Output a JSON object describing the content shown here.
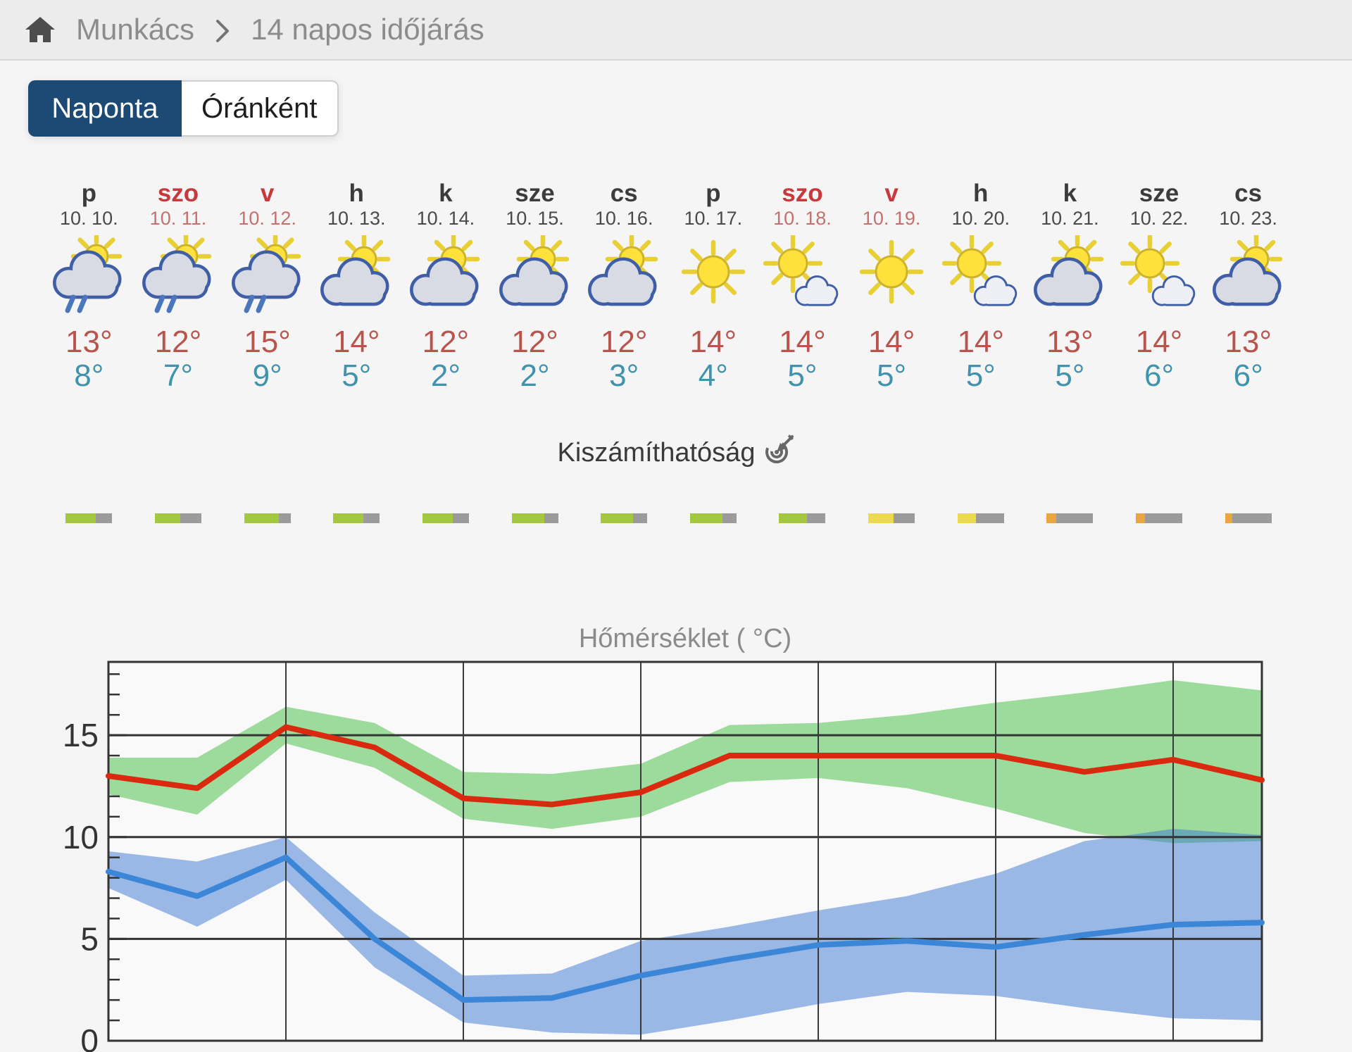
{
  "breadcrumb": {
    "location": "Munkács",
    "page": "14 napos időjárás"
  },
  "tabs": {
    "daily": "Naponta",
    "hourly": "Óránként"
  },
  "predictability": {
    "title": "Kiszámíthatóság"
  },
  "colors": {
    "tab_active": "#1c4a74",
    "high_temp": "#b9544c",
    "low_temp": "#4193ad",
    "weekend": "#c8393c",
    "bar": {
      "green": "#a3c73f",
      "yellow": "#ecd94d",
      "orange": "#e9a53f",
      "track": "#9b9b9b"
    }
  },
  "days": [
    {
      "name": "p",
      "date": "10. 10.",
      "weekend": false,
      "icon": "sun-behind-rain-cloud",
      "high": "13°",
      "low": "8°",
      "predictability_pct": "65%",
      "predict_value": 65,
      "bar_color": "green"
    },
    {
      "name": "szo",
      "date": "10. 11.",
      "weekend": true,
      "icon": "sun-behind-rain-cloud",
      "high": "12°",
      "low": "7°",
      "predictability_pct": "55%",
      "predict_value": 55,
      "bar_color": "green"
    },
    {
      "name": "v",
      "date": "10. 12.",
      "weekend": true,
      "icon": "sun-behind-rain-cloud",
      "high": "15°",
      "low": "9°",
      "predictability_pct": "75%",
      "predict_value": 75,
      "bar_color": "green"
    },
    {
      "name": "h",
      "date": "10. 13.",
      "weekend": false,
      "icon": "sun-behind-cloud",
      "high": "14°",
      "low": "5°",
      "predictability_pct": "65%",
      "predict_value": 65,
      "bar_color": "green"
    },
    {
      "name": "k",
      "date": "10. 14.",
      "weekend": false,
      "icon": "sun-behind-cloud",
      "high": "12°",
      "low": "2°",
      "predictability_pct": "65%",
      "predict_value": 65,
      "bar_color": "green"
    },
    {
      "name": "sze",
      "date": "10. 15.",
      "weekend": false,
      "icon": "sun-behind-cloud",
      "high": "12°",
      "low": "2°",
      "predictability_pct": "70%",
      "predict_value": 70,
      "bar_color": "green"
    },
    {
      "name": "cs",
      "date": "10. 16.",
      "weekend": false,
      "icon": "sun-behind-cloud",
      "high": "12°",
      "low": "3°",
      "predictability_pct": "70%",
      "predict_value": 70,
      "bar_color": "green"
    },
    {
      "name": "p",
      "date": "10. 17.",
      "weekend": false,
      "icon": "sunny",
      "high": "14°",
      "low": "4°",
      "predictability_pct": "70%",
      "predict_value": 70,
      "bar_color": "green"
    },
    {
      "name": "szo",
      "date": "10. 18.",
      "weekend": true,
      "icon": "sun-with-small-cloud",
      "high": "14°",
      "low": "5°",
      "predictability_pct": "60%",
      "predict_value": 60,
      "bar_color": "green"
    },
    {
      "name": "v",
      "date": "10. 19.",
      "weekend": true,
      "icon": "sunny",
      "high": "14°",
      "low": "5°",
      "predictability_pct": "55%",
      "predict_value": 55,
      "bar_color": "yellow"
    },
    {
      "name": "h",
      "date": "10. 20.",
      "weekend": false,
      "icon": "sun-with-small-cloud",
      "high": "14°",
      "low": "5°",
      "predictability_pct": "40%",
      "predict_value": 40,
      "bar_color": "yellow"
    },
    {
      "name": "k",
      "date": "10. 21.",
      "weekend": false,
      "icon": "sun-behind-cloud",
      "high": "13°",
      "low": "5°",
      "predictability_pct": "20%",
      "predict_value": 20,
      "bar_color": "orange"
    },
    {
      "name": "sze",
      "date": "10. 22.",
      "weekend": false,
      "icon": "sun-with-small-cloud",
      "high": "14°",
      "low": "6°",
      "predictability_pct": "20%",
      "predict_value": 20,
      "bar_color": "orange"
    },
    {
      "name": "cs",
      "date": "10. 23.",
      "weekend": false,
      "icon": "sun-behind-cloud",
      "high": "13°",
      "low": "6°",
      "predictability_pct": "15%",
      "predict_value": 15,
      "bar_color": "orange"
    }
  ],
  "chart_data": {
    "type": "line",
    "title": "Hőmérséklet ( °C)",
    "categories": [
      "10. 10.",
      "10. 11.",
      "10. 12.",
      "10. 13.",
      "10. 14.",
      "10. 15.",
      "10. 16.",
      "10. 17.",
      "10. 18.",
      "10. 19.",
      "10. 20.",
      "10. 21.",
      "10. 22.",
      "10. 23."
    ],
    "xlabel": "",
    "ylabel": "",
    "ylim": [
      0,
      18.6
    ],
    "yticks": [
      0,
      5,
      10,
      15
    ],
    "x_gridlines_at_day": [
      3,
      5,
      7,
      9,
      11,
      13
    ],
    "grid": true,
    "legend": false,
    "series": [
      {
        "name": "daily-high",
        "color": "#d92a10",
        "values": [
          13.0,
          12.4,
          15.4,
          14.4,
          11.9,
          11.6,
          12.2,
          14.0,
          14.0,
          14.0,
          14.0,
          13.2,
          13.8,
          12.8
        ],
        "band": {
          "color": "rgb(98,200,98)",
          "opacity": 0.62,
          "upper": [
            13.9,
            13.9,
            16.4,
            15.6,
            13.2,
            13.1,
            13.6,
            15.5,
            15.6,
            16.0,
            16.6,
            17.1,
            17.7,
            17.2
          ],
          "lower": [
            12.1,
            11.1,
            14.6,
            13.4,
            10.9,
            10.4,
            11.0,
            12.7,
            12.9,
            12.4,
            11.4,
            10.2,
            9.7,
            9.8
          ]
        }
      },
      {
        "name": "daily-low",
        "color": "#3c86d8",
        "values": [
          8.3,
          7.1,
          9.0,
          5.0,
          2.0,
          2.1,
          3.2,
          4.0,
          4.7,
          4.9,
          4.6,
          5.2,
          5.7,
          5.8
        ],
        "band": {
          "color": "rgb(60,120,210)",
          "opacity": 0.5,
          "upper": [
            9.3,
            8.8,
            10.0,
            6.3,
            3.2,
            3.3,
            4.9,
            5.6,
            6.4,
            7.1,
            8.2,
            9.8,
            10.4,
            10.1
          ],
          "lower": [
            7.5,
            5.6,
            7.9,
            3.6,
            0.9,
            0.4,
            0.3,
            1.0,
            1.8,
            2.4,
            2.2,
            1.6,
            1.1,
            1.0
          ]
        }
      }
    ]
  }
}
